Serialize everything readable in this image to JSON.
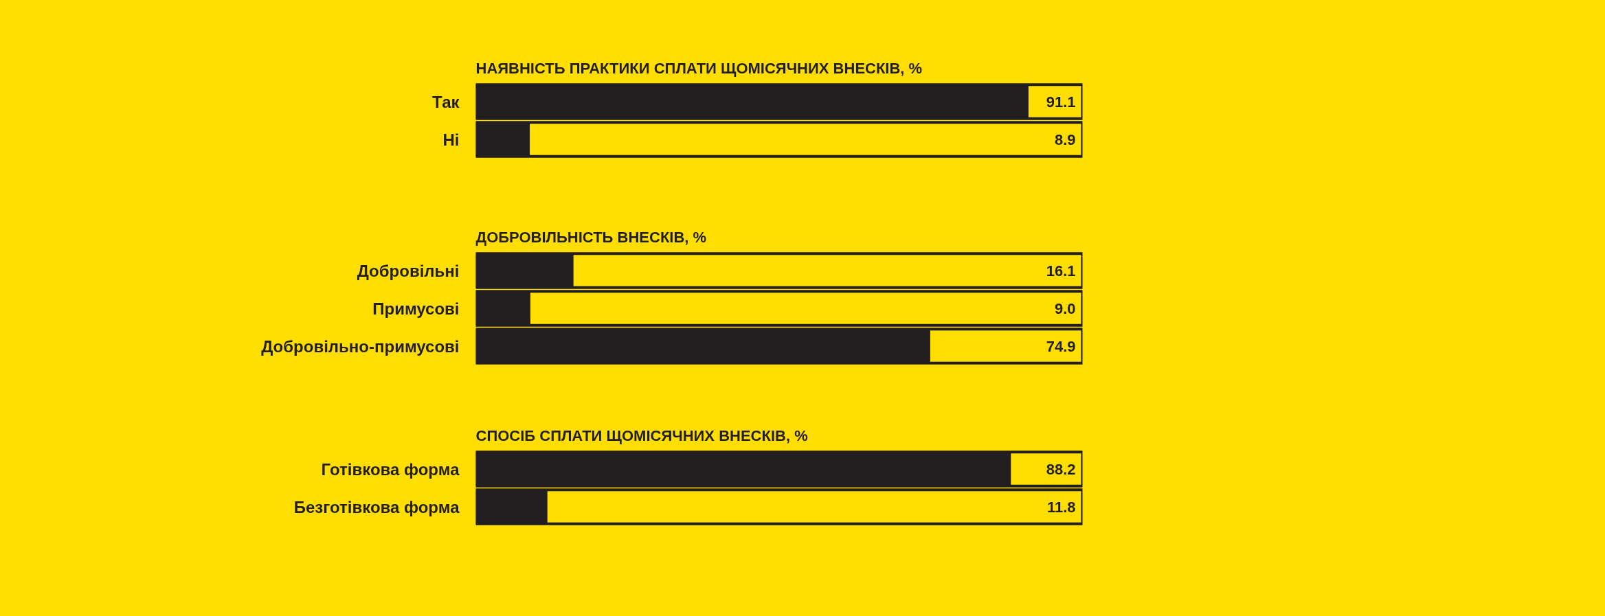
{
  "chart_data": [
    {
      "type": "bar",
      "orientation": "horizontal",
      "title": "НАЯВНІСТЬ ПРАКТИКИ СПЛАТИ ЩОМІСЯЧНИХ ВНЕСКІВ, %",
      "categories": [
        "Так",
        "Ні"
      ],
      "values": [
        91.1,
        8.9
      ],
      "value_labels": [
        "91.1",
        "8.9"
      ],
      "color": "#231f20",
      "tick_labels": "y"
    },
    {
      "type": "bar",
      "orientation": "horizontal",
      "title": "ДОБРОВІЛЬНІСТЬ ВНЕСКІВ, %",
      "categories": [
        "Добровільні",
        "Примусові",
        "Добровільно-примусові"
      ],
      "values": [
        16.1,
        9.0,
        74.9
      ],
      "value_labels": [
        "16.1",
        "9.0",
        "74.9"
      ],
      "color": "#231f20",
      "tick_labels": "y"
    },
    {
      "type": "bar",
      "orientation": "horizontal",
      "title": "СПОСІБ СПЛАТИ ЩОМІСЯЧНИХ ВНЕСКІВ, %",
      "categories": [
        "Готівкова форма",
        "Безготівкова форма"
      ],
      "values": [
        88.2,
        11.8
      ],
      "value_labels": [
        "88.2",
        "11.8"
      ],
      "color": "#231f20",
      "tick_labels": "y"
    }
  ]
}
